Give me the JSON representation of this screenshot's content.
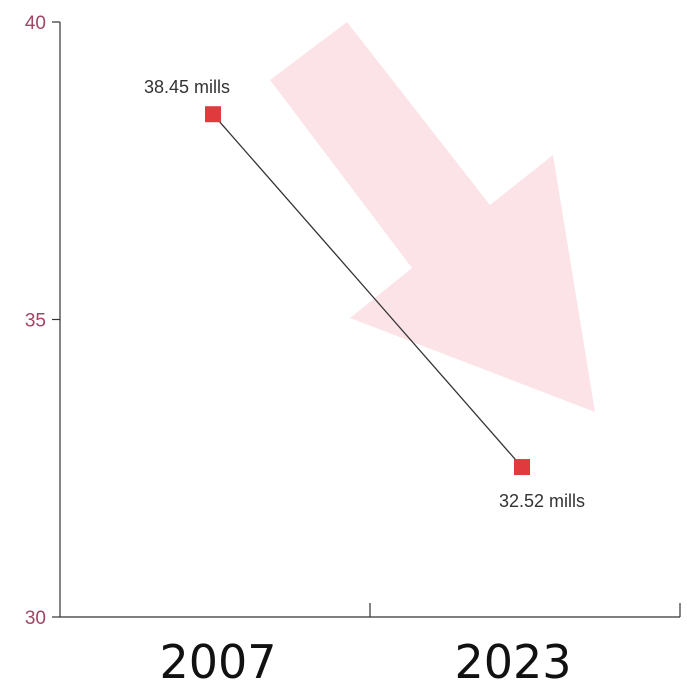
{
  "chart_data": {
    "type": "line",
    "categories": [
      "2007",
      "2023"
    ],
    "series": [
      {
        "values": [
          38.45,
          32.52
        ],
        "data_labels": [
          "38.45 mills",
          "32.52 mills"
        ],
        "color": "#e0393e",
        "line_color": "#333333",
        "marker": "square"
      }
    ],
    "y_ticks": [
      "30",
      "35",
      "40"
    ],
    "ylim": [
      30,
      40
    ],
    "grid": false,
    "decoration": {
      "arrow": "down-right",
      "arrow_color": "#fbe3e8"
    },
    "colors": {
      "ytick_label": "#a04566",
      "axis": "#333333",
      "xtick_label": "#111111"
    }
  }
}
